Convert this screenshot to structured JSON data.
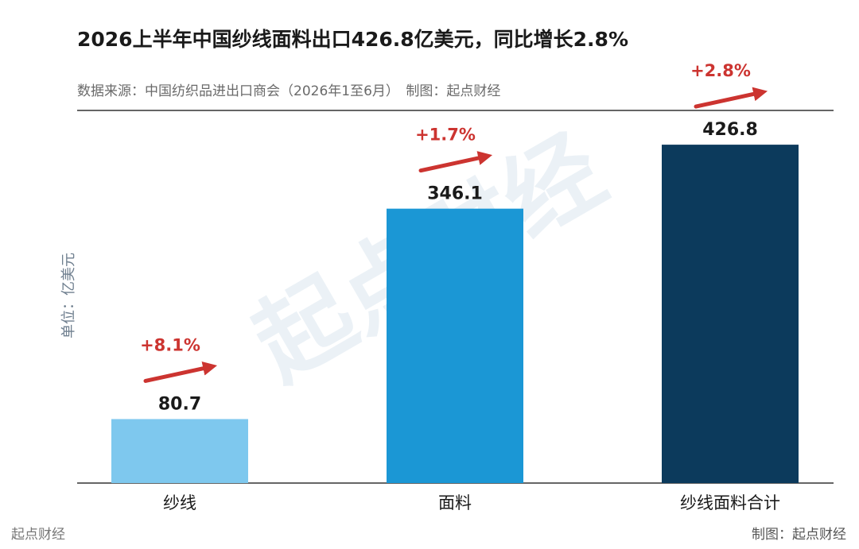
{
  "header": {
    "title": "2026上半年中国纱线面料出口426.8亿美元，同比增长2.8%",
    "subtitle": "数据来源：中国纺织品进出口商会（2026年1至6月）　制图：起点财经"
  },
  "watermark": "起点财经",
  "footer": {
    "left": "起点财经",
    "right": "制图：起点财经"
  },
  "colors": {
    "bars": [
      "#7ec8ee",
      "#1b97d5",
      "#0c3a5c"
    ],
    "growth": "#cc3430",
    "rule": "#333333"
  },
  "chart_data": {
    "type": "bar",
    "title": "2026上半年中国纱线面料出口426.8亿美元，同比增长2.8%",
    "categories": [
      "纱线",
      "面料",
      "纱线面料合计"
    ],
    "values": [
      80.7,
      346.1,
      426.8
    ],
    "value_labels": [
      "80.7",
      "346.1",
      "426.8"
    ],
    "growth": [
      "+8.1%",
      "+1.7%",
      "+2.8%"
    ],
    "ylabel": "单位：亿美元",
    "ylim": [
      0,
      470
    ],
    "grid": false,
    "legend": "none"
  }
}
